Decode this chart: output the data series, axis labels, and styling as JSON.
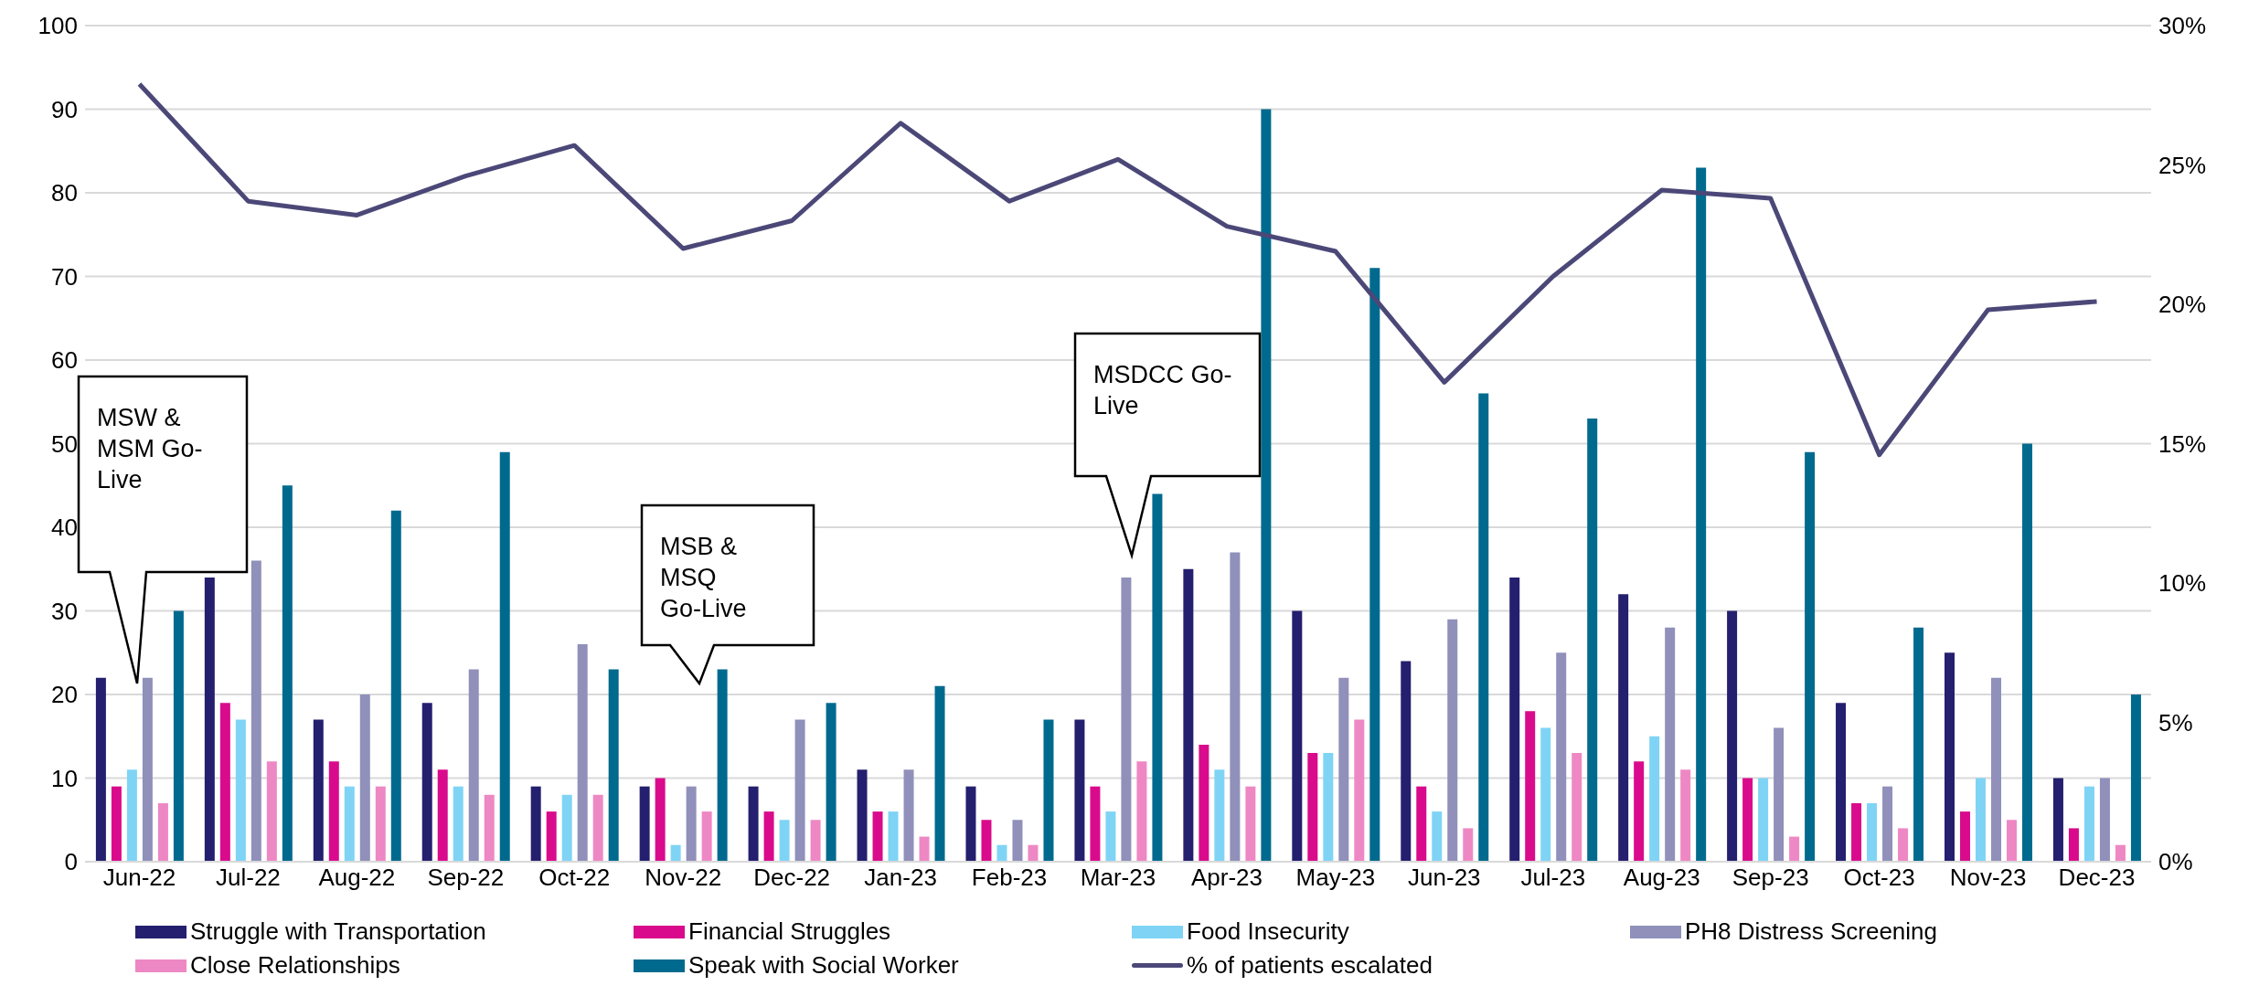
{
  "chart_data": {
    "type": "bar",
    "categories": [
      "Jun-22",
      "Jul-22",
      "Aug-22",
      "Sep-22",
      "Oct-22",
      "Nov-22",
      "Dec-22",
      "Jan-23",
      "Feb-23",
      "Mar-23",
      "Apr-23",
      "May-23",
      "Jun-23",
      "Jul-23",
      "Aug-23",
      "Sep-23",
      "Oct-23",
      "Nov-23",
      "Dec-23"
    ],
    "series": [
      {
        "name": "Struggle with Transportation",
        "color": "#241f6e",
        "values": [
          22,
          34,
          17,
          19,
          9,
          9,
          9,
          11,
          9,
          17,
          35,
          30,
          24,
          34,
          32,
          30,
          19,
          25,
          10
        ]
      },
      {
        "name": "Financial Struggles",
        "color": "#d90b8c",
        "values": [
          9,
          19,
          12,
          11,
          6,
          10,
          6,
          6,
          5,
          9,
          14,
          13,
          9,
          18,
          12,
          10,
          7,
          6,
          4
        ]
      },
      {
        "name": "Food Insecurity",
        "color": "#7fd4f5",
        "values": [
          11,
          17,
          9,
          9,
          8,
          2,
          5,
          6,
          2,
          6,
          11,
          13,
          6,
          16,
          15,
          10,
          7,
          10,
          9
        ]
      },
      {
        "name": "PH8 Distress Screening",
        "color": "#9090bb",
        "values": [
          22,
          36,
          20,
          23,
          26,
          9,
          17,
          11,
          5,
          34,
          37,
          22,
          29,
          25,
          28,
          16,
          9,
          22,
          10
        ]
      },
      {
        "name": "Close Relationships",
        "color": "#ee88c4",
        "values": [
          7,
          12,
          9,
          8,
          8,
          6,
          5,
          3,
          2,
          12,
          9,
          17,
          4,
          13,
          11,
          3,
          4,
          5,
          2
        ]
      },
      {
        "name": "Speak with Social Worker",
        "color": "#006a8e",
        "values": [
          30,
          45,
          42,
          49,
          23,
          23,
          19,
          21,
          17,
          44,
          90,
          71,
          56,
          53,
          83,
          49,
          28,
          50,
          20
        ]
      },
      {
        "name": "% of patients escalated",
        "type": "line",
        "axis": "y2",
        "color": "#4b4878",
        "values": [
          27.9,
          23.7,
          23.2,
          24.6,
          25.7,
          22.0,
          23.0,
          26.5,
          23.7,
          25.2,
          22.8,
          21.9,
          17.2,
          21.0,
          24.1,
          23.8,
          14.6,
          19.8,
          20.1
        ]
      }
    ],
    "ylim": [
      0,
      100
    ],
    "yticks": [
      0,
      10,
      20,
      30,
      40,
      50,
      60,
      70,
      80,
      90,
      100
    ],
    "y2lim": [
      0,
      30
    ],
    "y2ticks": [
      {
        "value": 0,
        "label": "0%"
      },
      {
        "value": 5,
        "label": "5%"
      },
      {
        "value": 10,
        "label": "10%"
      },
      {
        "value": 15,
        "label": "15%"
      },
      {
        "value": 20,
        "label": "20%"
      },
      {
        "value": 25,
        "label": "25%"
      },
      {
        "value": 30,
        "label": "30%"
      }
    ],
    "annotations": [
      "MSW & MSM Go-Live",
      "MSB & MSQ Go-Live",
      "MSDCC Go-Live"
    ],
    "grid": "y",
    "legend": "bottom",
    "marker": "none",
    "line_style": "solid"
  }
}
